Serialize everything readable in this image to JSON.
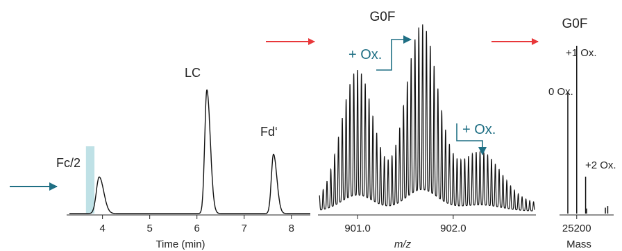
{
  "chart_data": [
    {
      "type": "line",
      "xlabel": "Time (min)",
      "x_ticks": [
        "4",
        "5",
        "6",
        "7",
        "8"
      ],
      "xlim": [
        3.3,
        8.4
      ],
      "ylim": [
        0,
        1.0
      ],
      "peaks": [
        {
          "label": "Fc/2",
          "x": 3.93,
          "height": 0.29,
          "width": 0.06
        },
        {
          "label": "LC",
          "x": 6.21,
          "height": 0.98,
          "width": 0.045
        },
        {
          "label": "Fd‘",
          "x": 7.62,
          "height": 0.47,
          "width": 0.045
        }
      ],
      "highlight_band": [
        3.65,
        3.83
      ],
      "arrow_color": "#1f6f84",
      "band_color": "#bfe1e6"
    },
    {
      "type": "line",
      "title": "G0F",
      "xlabel": "m/z",
      "x_ticks": [
        "901.0",
        "902.0"
      ],
      "xlim": [
        900.6,
        902.85
      ],
      "annotations": [
        "+ Ox.",
        "+ Ox."
      ],
      "envelopes": [
        {
          "center": 901.0,
          "amplitude": 0.72,
          "sigma": 0.17
        },
        {
          "center": 901.67,
          "amplitude": 0.96,
          "sigma": 0.17
        },
        {
          "center": 902.28,
          "amplitude": 0.28,
          "sigma": 0.22
        }
      ],
      "peak_spacing": 0.04,
      "accent_color": "#1f6f84"
    },
    {
      "type": "bar",
      "title": "G0F",
      "xlabel": "Mass",
      "x_ticks": [
        "25200"
      ],
      "xlim": [
        25120,
        25380
      ],
      "bars": [
        {
          "label": "0 Ox.",
          "x": 25155,
          "value": 0.72
        },
        {
          "label": "+1 Ox.",
          "x": 25200,
          "value": 1.0
        },
        {
          "label": "+2 Ox.",
          "x": 25245,
          "value": 0.22
        }
      ],
      "minor_bars": [
        {
          "x": 25250,
          "value": 0.03
        },
        {
          "x": 25345,
          "value": 0.035
        },
        {
          "x": 25357,
          "value": 0.045
        }
      ]
    }
  ],
  "flow_arrows": {
    "color": "#e8373a",
    "count": 2
  }
}
